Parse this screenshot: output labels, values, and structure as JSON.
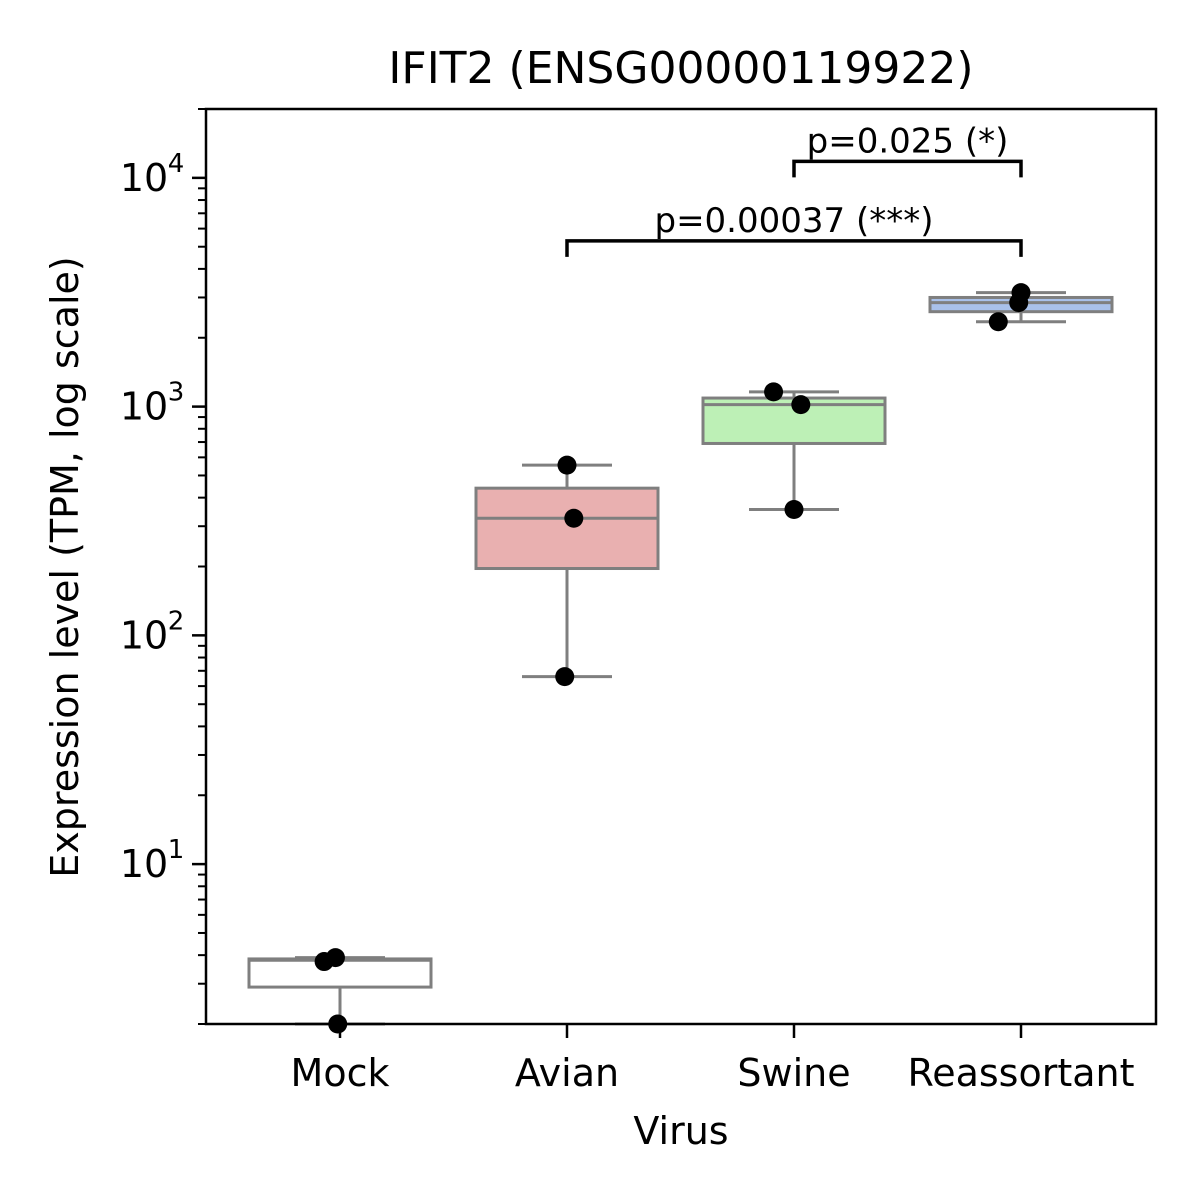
{
  "chart_data": {
    "type": "box",
    "title": "IFIT2 (ENSG00000119922)",
    "xlabel": "Virus",
    "ylabel": "Expression level (TPM, log scale)",
    "yscale": "log",
    "ylim": [
      2,
      20000
    ],
    "categories": [
      "Mock",
      "Avian",
      "Swine",
      "Reassortant"
    ],
    "y_ticks": [
      {
        "value": 10,
        "base": "10",
        "exp": "1"
      },
      {
        "value": 100,
        "base": "10",
        "exp": "2"
      },
      {
        "value": 1000,
        "base": "10",
        "exp": "3"
      },
      {
        "value": 10000,
        "base": "10",
        "exp": "4"
      }
    ],
    "boxes": [
      {
        "category": "Mock",
        "whisker_low": 2.0,
        "q1": 2.9,
        "median": 3.8,
        "q3": 3.85,
        "whisker_high": 3.9,
        "fill": "#ffffff"
      },
      {
        "category": "Avian",
        "whisker_low": 66,
        "q1": 196,
        "median": 325,
        "q3": 440,
        "whisker_high": 555,
        "fill": "#e9b0b0"
      },
      {
        "category": "Swine",
        "whisker_low": 355,
        "q1": 690,
        "median": 1020,
        "q3": 1090,
        "whisker_high": 1160,
        "fill": "#bdf0b6"
      },
      {
        "category": "Reassortant",
        "whisker_low": 2350,
        "q1": 2600,
        "median": 2850,
        "q3": 3000,
        "whisker_high": 3150,
        "fill": "#a9c1ea"
      }
    ],
    "points": [
      {
        "category": "Mock",
        "y": 2.0,
        "jitter": -0.01
      },
      {
        "category": "Mock",
        "y": 3.75,
        "jitter": -0.07
      },
      {
        "category": "Mock",
        "y": 3.9,
        "jitter": -0.02
      },
      {
        "category": "Avian",
        "y": 66,
        "jitter": -0.01
      },
      {
        "category": "Avian",
        "y": 325,
        "jitter": 0.03
      },
      {
        "category": "Avian",
        "y": 555,
        "jitter": 0.0
      },
      {
        "category": "Swine",
        "y": 355,
        "jitter": 0.0
      },
      {
        "category": "Swine",
        "y": 1020,
        "jitter": 0.03
      },
      {
        "category": "Swine",
        "y": 1160,
        "jitter": -0.09
      },
      {
        "category": "Reassortant",
        "y": 2350,
        "jitter": -0.1
      },
      {
        "category": "Reassortant",
        "y": 2850,
        "jitter": -0.01
      },
      {
        "category": "Reassortant",
        "y": 3150,
        "jitter": 0.0
      }
    ],
    "significance": [
      {
        "from": "Avian",
        "to": "Reassortant",
        "y": 5300,
        "label": "p=0.00037 (***)"
      },
      {
        "from": "Swine",
        "to": "Reassortant",
        "y": 11800,
        "label": "p=0.025 (*)"
      }
    ]
  }
}
